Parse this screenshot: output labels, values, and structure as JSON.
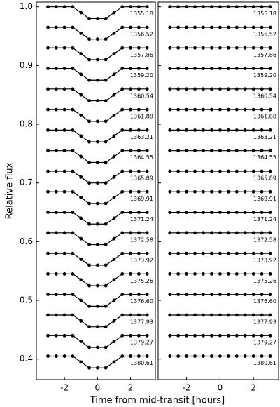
{
  "chart_data": [
    {
      "type": "scatter",
      "ylabel": "Relative flux",
      "xlabel": "Time from mid-transit [hours]",
      "xlim": [
        -3.7,
        3.5
      ],
      "xticks": [
        -2,
        0,
        2
      ],
      "ylim": [
        0.365,
        1.008
      ],
      "yticks": [
        {
          "value": 0.4,
          "label": "0.4"
        },
        {
          "value": 0.5,
          "label": "0.5"
        },
        {
          "value": 0.6,
          "label": "0.6"
        },
        {
          "value": 0.7,
          "label": "0.7"
        },
        {
          "value": 0.8,
          "label": "0.8"
        },
        {
          "value": 0.9,
          "label": "0.9"
        },
        {
          "value": 1,
          "label": "1.0"
        }
      ],
      "x": [
        -3,
        -2.5,
        -2,
        -1.5,
        -1,
        -0.5,
        0,
        0.5,
        1,
        1.5,
        2,
        2.5,
        3
      ],
      "color": "#000000",
      "series": [
        {
          "name": "1355.18",
          "values": [
            1.0,
            1.0,
            1.0,
            1.0,
            0.99,
            0.98,
            0.98,
            0.98,
            0.99,
            1.0,
            1.0,
            1.0,
            1.0
          ]
        },
        {
          "name": "1356.52",
          "values": [
            0.965,
            0.965,
            0.965,
            0.965,
            0.955,
            0.945,
            0.945,
            0.945,
            0.955,
            0.965,
            0.965,
            0.965,
            0.965
          ]
        },
        {
          "name": "1357.86",
          "values": [
            0.93,
            0.93,
            0.93,
            0.93,
            0.92,
            0.91,
            0.91,
            0.91,
            0.92,
            0.93,
            0.93,
            0.93,
            0.93
          ]
        },
        {
          "name": "1359.20",
          "values": [
            0.895,
            0.895,
            0.895,
            0.895,
            0.885,
            0.875,
            0.875,
            0.875,
            0.885,
            0.895,
            0.895,
            0.895,
            0.895
          ]
        },
        {
          "name": "1360.54",
          "values": [
            0.86,
            0.86,
            0.86,
            0.86,
            0.85,
            0.84,
            0.84,
            0.84,
            0.85,
            0.86,
            0.86,
            0.86,
            0.86
          ]
        },
        {
          "name": "1361.88",
          "values": [
            0.825,
            0.825,
            0.825,
            0.825,
            0.815,
            0.805,
            0.805,
            0.805,
            0.815,
            0.825,
            0.825,
            0.825,
            0.825
          ]
        },
        {
          "name": "1363.21",
          "values": [
            0.79,
            0.79,
            0.79,
            0.79,
            0.78,
            0.77,
            0.77,
            0.77,
            0.78,
            0.79,
            0.79,
            0.79,
            0.79
          ]
        },
        {
          "name": "1364.55",
          "values": [
            0.755,
            0.755,
            0.755,
            0.755,
            0.745,
            0.735,
            0.735,
            0.735,
            0.745,
            0.755,
            0.755,
            0.755,
            0.755
          ]
        },
        {
          "name": "1365.89",
          "values": [
            0.72,
            0.72,
            0.72,
            0.72,
            0.71,
            0.7,
            0.7,
            0.7,
            0.71,
            0.72,
            0.72,
            0.72,
            0.72
          ]
        },
        {
          "name": "1369.91",
          "values": [
            0.685,
            0.685,
            0.685,
            0.685,
            0.675,
            0.665,
            0.665,
            0.665,
            0.675,
            0.685,
            0.685,
            0.685,
            0.685
          ]
        },
        {
          "name": "1371.24",
          "values": [
            0.65,
            0.65,
            0.65,
            0.65,
            0.64,
            0.63,
            0.63,
            0.63,
            0.64,
            0.65,
            0.65,
            0.65,
            0.65
          ]
        },
        {
          "name": "1372.58",
          "values": [
            0.615,
            0.615,
            0.615,
            0.615,
            0.605,
            0.595,
            0.595,
            0.595,
            0.605,
            0.615,
            0.615,
            0.615,
            0.615
          ]
        },
        {
          "name": "1373.92",
          "values": [
            0.58,
            0.58,
            0.58,
            0.58,
            0.57,
            0.56,
            0.56,
            0.56,
            0.57,
            0.58,
            0.58,
            0.58,
            0.58
          ]
        },
        {
          "name": "1375.26",
          "values": [
            0.545,
            0.545,
            0.545,
            0.545,
            0.535,
            0.525,
            0.525,
            0.525,
            0.535,
            0.545,
            0.545,
            0.545,
            0.545
          ]
        },
        {
          "name": "1376.60",
          "values": [
            0.51,
            0.51,
            0.51,
            0.51,
            0.5,
            0.49,
            0.49,
            0.49,
            0.5,
            0.51,
            0.51,
            0.51,
            0.51
          ]
        },
        {
          "name": "1377.93",
          "values": [
            0.475,
            0.475,
            0.475,
            0.475,
            0.465,
            0.455,
            0.455,
            0.455,
            0.465,
            0.475,
            0.475,
            0.475,
            0.475
          ]
        },
        {
          "name": "1379.27",
          "values": [
            0.44,
            0.44,
            0.44,
            0.44,
            0.43,
            0.42,
            0.42,
            0.42,
            0.43,
            0.44,
            0.44,
            0.44,
            0.44
          ]
        },
        {
          "name": "1380.61",
          "values": [
            0.405,
            0.405,
            0.405,
            0.405,
            0.395,
            0.385,
            0.385,
            0.385,
            0.395,
            0.405,
            0.405,
            0.405,
            0.405
          ]
        }
      ]
    },
    {
      "type": "scatter",
      "xlim": [
        -3.7,
        3.5
      ],
      "xticks": [
        -2,
        0,
        2
      ],
      "ylim": [
        0.365,
        1.008
      ],
      "x": [
        -3,
        -2.5,
        -2,
        -1.5,
        -1,
        -0.5,
        0,
        0.5,
        1,
        1.5,
        2,
        2.5,
        3
      ],
      "color": "#000000",
      "series": [
        {
          "name": "1355.18",
          "values": [
            1.0,
            1.0,
            1.0,
            1.0,
            1.0,
            1.0,
            1.0,
            1.0,
            1.0,
            1.0,
            1.0,
            1.0,
            1.0
          ]
        },
        {
          "name": "1356.52",
          "values": [
            0.965,
            0.965,
            0.965,
            0.965,
            0.965,
            0.965,
            0.965,
            0.965,
            0.965,
            0.965,
            0.965,
            0.965,
            0.965
          ]
        },
        {
          "name": "1357.86",
          "values": [
            0.93,
            0.93,
            0.93,
            0.93,
            0.93,
            0.93,
            0.93,
            0.93,
            0.93,
            0.93,
            0.93,
            0.93,
            0.93
          ]
        },
        {
          "name": "1359.20",
          "values": [
            0.895,
            0.895,
            0.895,
            0.895,
            0.895,
            0.895,
            0.895,
            0.895,
            0.895,
            0.895,
            0.895,
            0.895,
            0.895
          ]
        },
        {
          "name": "1360.54",
          "values": [
            0.86,
            0.86,
            0.86,
            0.86,
            0.86,
            0.86,
            0.86,
            0.86,
            0.86,
            0.86,
            0.86,
            0.86,
            0.86
          ]
        },
        {
          "name": "1361.88",
          "values": [
            0.825,
            0.825,
            0.825,
            0.825,
            0.825,
            0.825,
            0.825,
            0.825,
            0.825,
            0.825,
            0.825,
            0.825,
            0.825
          ]
        },
        {
          "name": "1363.21",
          "values": [
            0.79,
            0.79,
            0.79,
            0.79,
            0.79,
            0.79,
            0.79,
            0.79,
            0.79,
            0.79,
            0.79,
            0.79,
            0.79
          ]
        },
        {
          "name": "1364.55",
          "values": [
            0.755,
            0.755,
            0.755,
            0.755,
            0.755,
            0.755,
            0.755,
            0.755,
            0.755,
            0.755,
            0.755,
            0.755,
            0.755
          ]
        },
        {
          "name": "1365.89",
          "values": [
            0.72,
            0.72,
            0.72,
            0.72,
            0.72,
            0.72,
            0.72,
            0.72,
            0.72,
            0.72,
            0.72,
            0.72,
            0.72
          ]
        },
        {
          "name": "1369.91",
          "values": [
            0.685,
            0.685,
            0.685,
            0.685,
            0.685,
            0.685,
            0.685,
            0.685,
            0.685,
            0.685,
            0.685,
            0.685,
            0.685
          ]
        },
        {
          "name": "1371.24",
          "values": [
            0.65,
            0.65,
            0.65,
            0.65,
            0.65,
            0.65,
            0.65,
            0.65,
            0.65,
            0.65,
            0.65,
            0.65,
            0.65
          ]
        },
        {
          "name": "1372.58",
          "values": [
            0.615,
            0.615,
            0.615,
            0.615,
            0.615,
            0.615,
            0.615,
            0.615,
            0.615,
            0.615,
            0.615,
            0.615,
            0.615
          ]
        },
        {
          "name": "1373.92",
          "values": [
            0.58,
            0.58,
            0.58,
            0.58,
            0.58,
            0.58,
            0.58,
            0.58,
            0.58,
            0.58,
            0.58,
            0.58,
            0.58
          ]
        },
        {
          "name": "1375.26",
          "values": [
            0.545,
            0.545,
            0.545,
            0.545,
            0.545,
            0.545,
            0.545,
            0.545,
            0.545,
            0.545,
            0.545,
            0.545,
            0.545
          ]
        },
        {
          "name": "1376.60",
          "values": [
            0.51,
            0.51,
            0.51,
            0.51,
            0.51,
            0.51,
            0.51,
            0.51,
            0.51,
            0.51,
            0.51,
            0.51,
            0.51
          ]
        },
        {
          "name": "1377.93",
          "values": [
            0.475,
            0.475,
            0.475,
            0.475,
            0.475,
            0.475,
            0.475,
            0.475,
            0.475,
            0.475,
            0.475,
            0.475,
            0.475
          ]
        },
        {
          "name": "1379.27",
          "values": [
            0.44,
            0.44,
            0.44,
            0.44,
            0.44,
            0.44,
            0.44,
            0.44,
            0.44,
            0.44,
            0.44,
            0.44,
            0.44
          ]
        },
        {
          "name": "1380.61",
          "values": [
            0.405,
            0.405,
            0.405,
            0.405,
            0.405,
            0.405,
            0.405,
            0.405,
            0.405,
            0.405,
            0.405,
            0.405,
            0.405
          ]
        }
      ]
    }
  ]
}
